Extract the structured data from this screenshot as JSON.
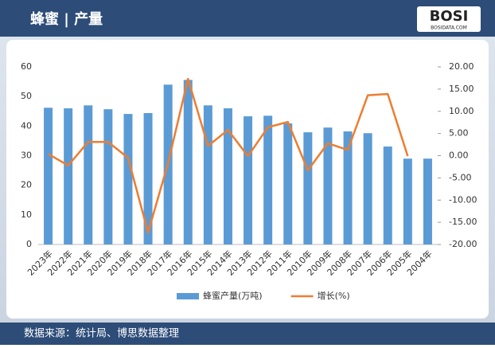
{
  "header": {
    "title": "蜂蜜 | 产量",
    "logo": "BOSI",
    "logo_sub": "BOSIDATA.COM"
  },
  "footer": {
    "source": "数据来源：统计局、博思数据整理"
  },
  "chart_data": {
    "type": "bar",
    "categories": [
      "2023年",
      "2022年",
      "2021年",
      "2020年",
      "2019年",
      "2018年",
      "2017年",
      "2016年",
      "2015年",
      "2014年",
      "2013年",
      "2012年",
      "2011年",
      "2010年",
      "2009年",
      "2008年",
      "2007年",
      "2006年",
      "2005年",
      "2004年"
    ],
    "series": [
      {
        "name": "蜂蜜产量(万吨)",
        "type": "bar",
        "color": "#5b9bd5",
        "values": [
          46.2,
          46,
          47,
          45.7,
          44.1,
          44.4,
          54,
          55.6,
          47,
          46,
          43.3,
          43.5,
          40.9,
          37.9,
          39.5,
          38.2,
          37.6,
          33.1,
          29,
          29
        ]
      },
      {
        "name": "增长(%)",
        "type": "line",
        "axis": "y2",
        "color": "#ed7d31",
        "values": [
          0.4,
          -2.2,
          3.1,
          3.1,
          -0.5,
          -17.3,
          -1.7,
          17.3,
          2.2,
          5.8,
          -0.1,
          6.4,
          7.6,
          -3.3,
          2.8,
          1.3,
          13.6,
          13.9,
          -0.1,
          null
        ]
      }
    ],
    "ylim": [
      0,
      60
    ],
    "yticks": [
      0,
      10,
      20,
      30,
      40,
      50,
      60
    ],
    "y2lim": [
      -20,
      20
    ],
    "y2ticks": [
      {
        "value": 20,
        "label": "20.00"
      },
      {
        "value": 15,
        "label": "15.00"
      },
      {
        "value": 10,
        "label": "10.00"
      },
      {
        "value": 5,
        "label": "5.00"
      },
      {
        "value": 0,
        "label": "0.00"
      },
      {
        "value": -5,
        "label": "-5.00"
      },
      {
        "value": -10,
        "label": "-10.00"
      },
      {
        "value": -15,
        "label": "-15.00"
      },
      {
        "value": -20,
        "label": "-20.00"
      }
    ],
    "grid": false,
    "legend": "bottom"
  }
}
